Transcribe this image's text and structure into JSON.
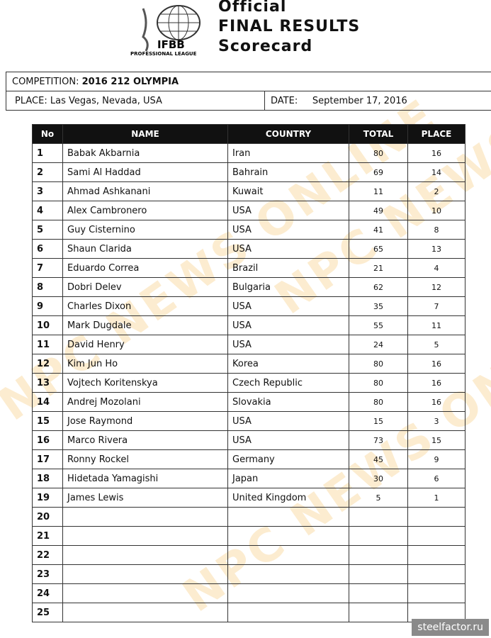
{
  "header": {
    "logo_text": "IFBB PROFESSIONAL LEAGUE",
    "title_lines": [
      "Official",
      "FINAL RESULTS",
      "Scorecard"
    ]
  },
  "info": {
    "competition_label": "COMPETITION:",
    "competition": "2016 212 OLYMPIA",
    "place_label": "PLACE:",
    "place": "Las Vegas, Nevada, USA",
    "date_label": "DATE:",
    "date": "September 17, 2016"
  },
  "table": {
    "columns": [
      "No",
      "NAME",
      "COUNTRY",
      "TOTAL",
      "PLACE"
    ],
    "rows": [
      [
        "1",
        "Babak Akbarnia",
        "Iran",
        "80",
        "16"
      ],
      [
        "2",
        "Sami Al Haddad",
        "Bahrain",
        "69",
        "14"
      ],
      [
        "3",
        "Ahmad Ashkanani",
        "Kuwait",
        "11",
        "2"
      ],
      [
        "4",
        "Alex Cambronero",
        "USA",
        "49",
        "10"
      ],
      [
        "5",
        "Guy Cisternino",
        "USA",
        "41",
        "8"
      ],
      [
        "6",
        "Shaun Clarida",
        "USA",
        "65",
        "13"
      ],
      [
        "7",
        "Eduardo Correa",
        "Brazil",
        "21",
        "4"
      ],
      [
        "8",
        "Dobri Delev",
        "Bulgaria",
        "62",
        "12"
      ],
      [
        "9",
        "Charles Dixon",
        "USA",
        "35",
        "7"
      ],
      [
        "10",
        "Mark Dugdale",
        "USA",
        "55",
        "11"
      ],
      [
        "11",
        "David Henry",
        "USA",
        "24",
        "5"
      ],
      [
        "12",
        "Kim Jun Ho",
        "Korea",
        "80",
        "16"
      ],
      [
        "13",
        "Vojtech Koritenskya",
        "Czech Republic",
        "80",
        "16"
      ],
      [
        "14",
        "Andrej Mozolani",
        "Slovakia",
        "80",
        "16"
      ],
      [
        "15",
        "Jose Raymond",
        "USA",
        "15",
        "3"
      ],
      [
        "16",
        "Marco Rivera",
        "USA",
        "73",
        "15"
      ],
      [
        "17",
        "Ronny Rockel",
        "Germany",
        "45",
        "9"
      ],
      [
        "18",
        "Hidetada Yamagishi",
        "Japan",
        "30",
        "6"
      ],
      [
        "19",
        "James Lewis",
        "United Kingdom",
        "5",
        "1"
      ],
      [
        "20",
        "",
        "",
        "",
        ""
      ],
      [
        "21",
        "",
        "",
        "",
        ""
      ],
      [
        "22",
        "",
        "",
        "",
        ""
      ],
      [
        "23",
        "",
        "",
        "",
        ""
      ],
      [
        "24",
        "",
        "",
        "",
        ""
      ],
      [
        "25",
        "",
        "",
        "",
        ""
      ]
    ]
  },
  "watermark": "NPC NEWS ONLINE",
  "site_watermark": "steelfactor.ru"
}
